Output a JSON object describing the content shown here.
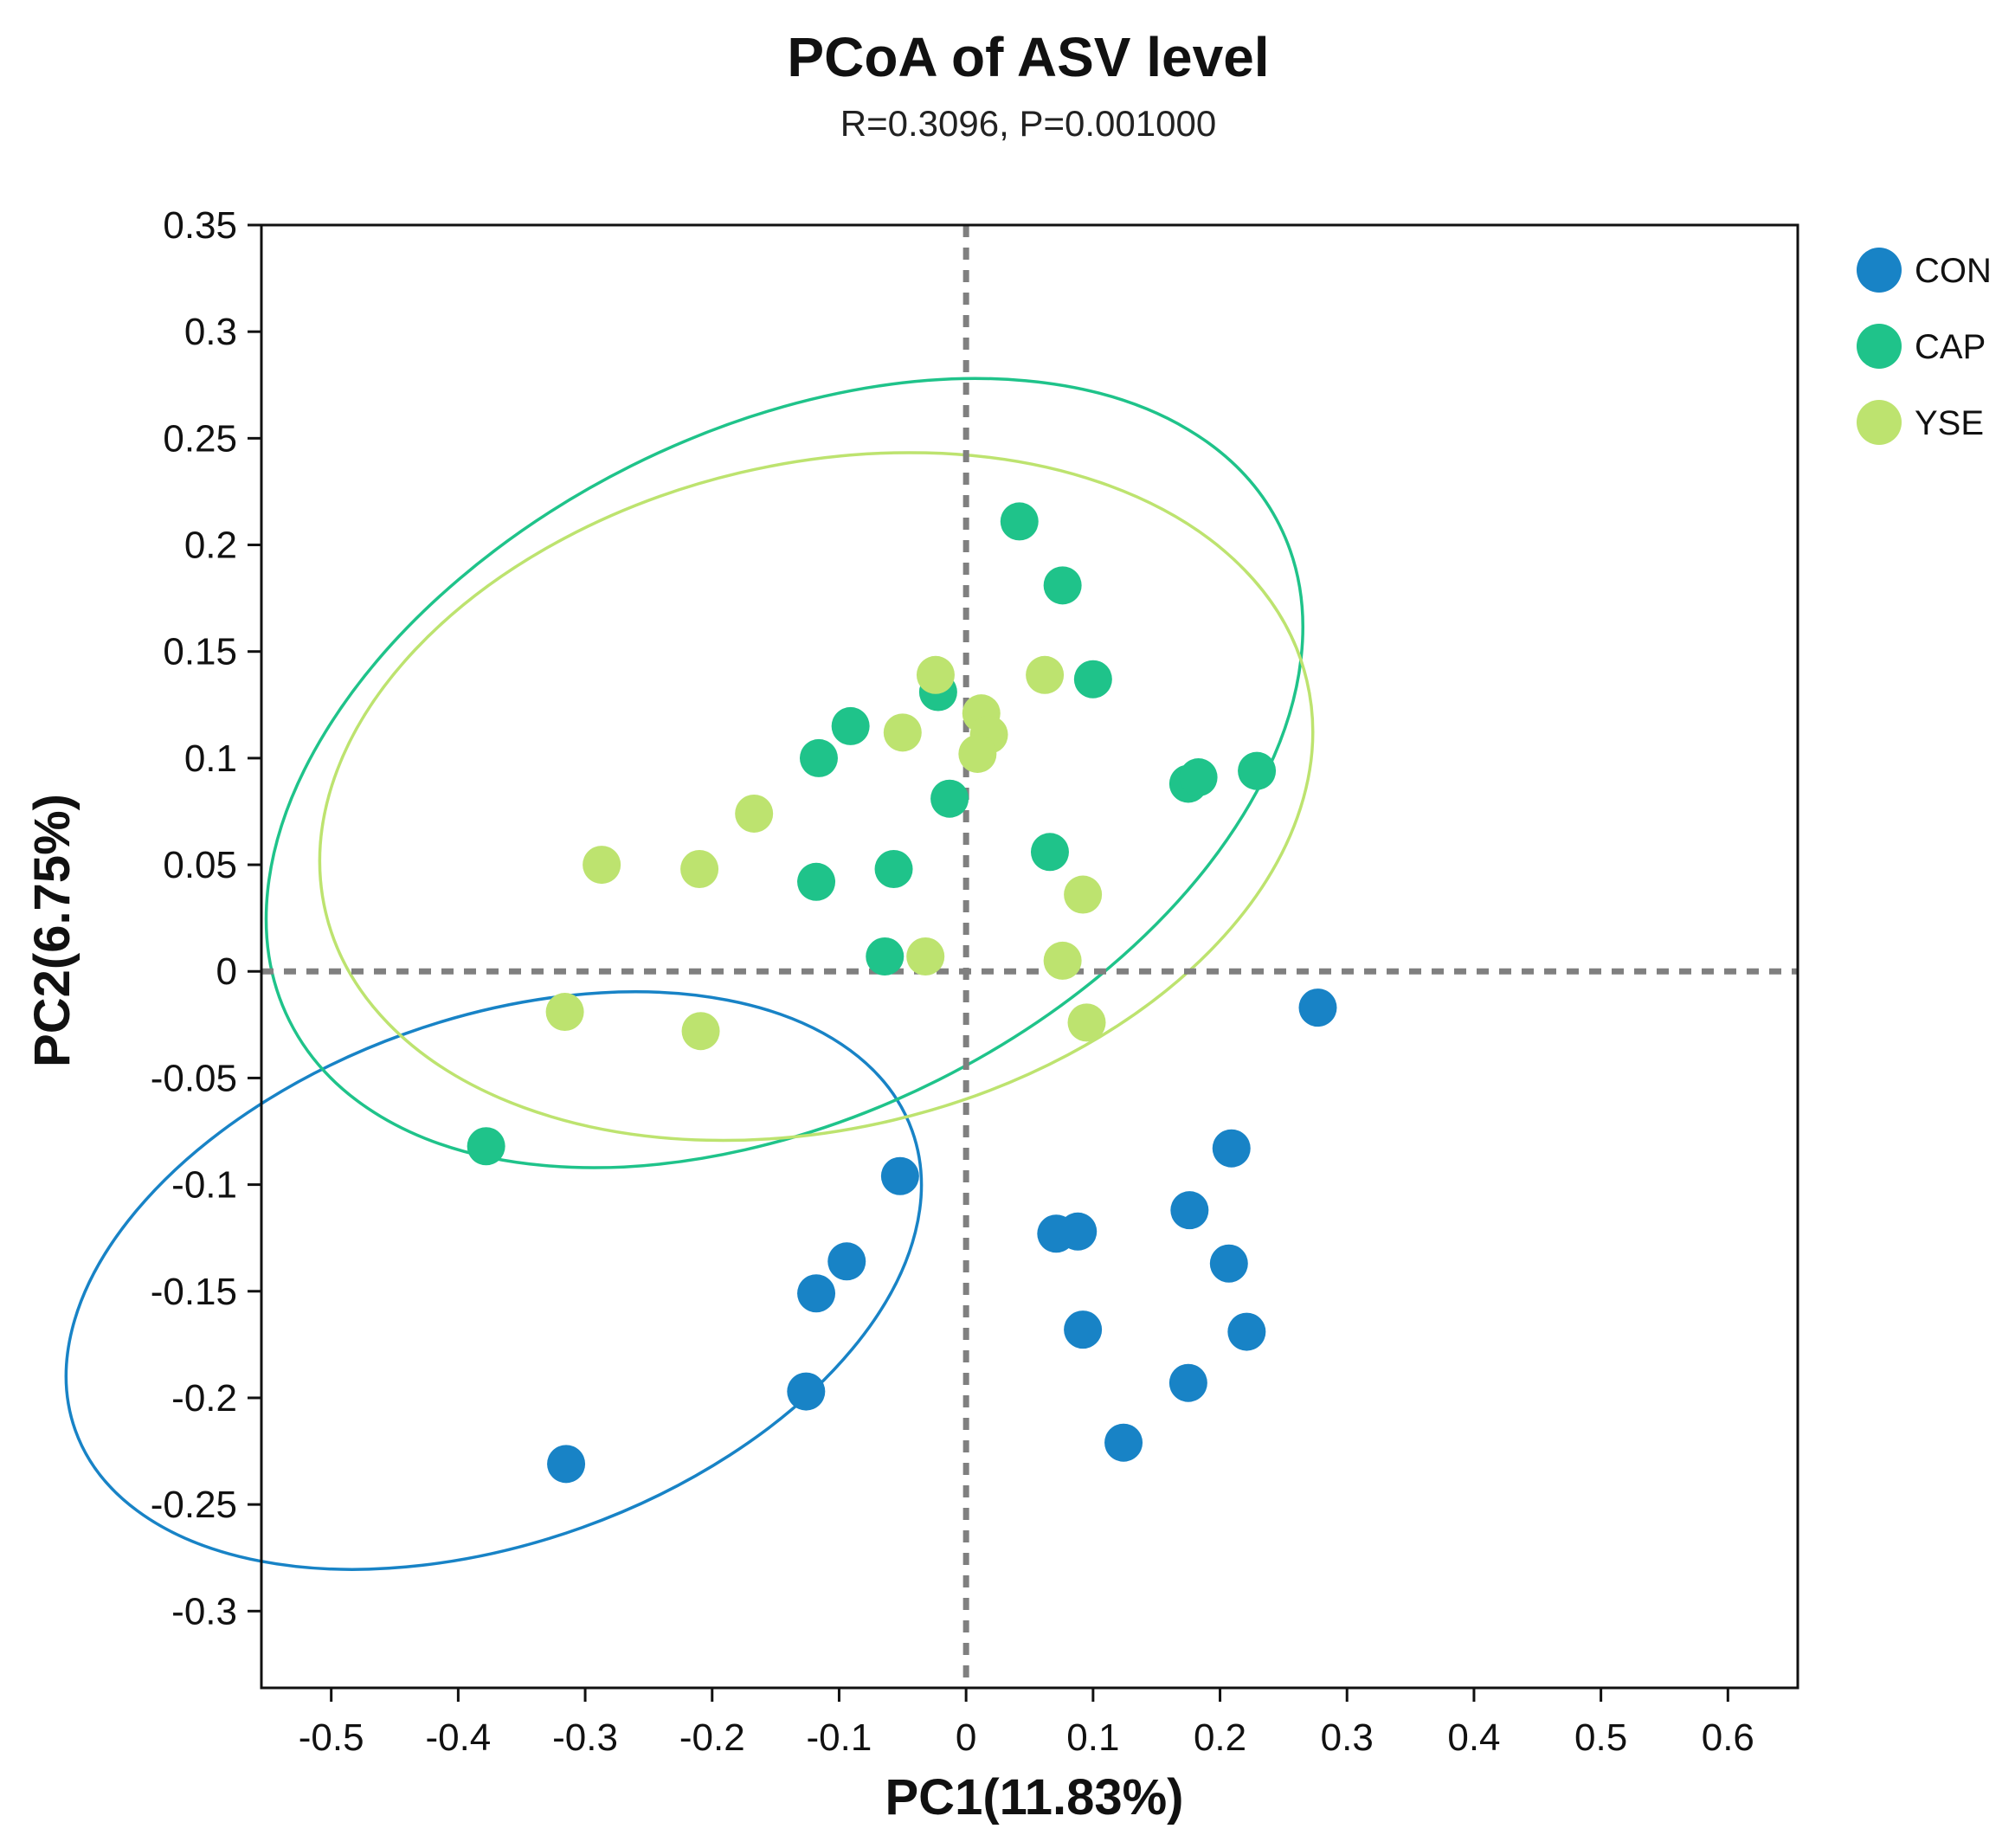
{
  "chart_data": {
    "type": "scatter",
    "title": "PCoA of ASV level",
    "subtitle": "R=0.3096, P=0.001000",
    "xlabel": "PC1(11.83%)",
    "ylabel": "PC2(6.75%)",
    "xlim": [
      -0.555,
      0.655
    ],
    "ylim": [
      -0.336,
      0.35
    ],
    "xticks": [
      -0.5,
      -0.4,
      -0.3,
      -0.2,
      -0.1,
      0,
      0.1,
      0.2,
      0.3,
      0.4,
      0.5,
      0.6
    ],
    "xtick_labels": [
      "-0.5",
      "-0.4",
      "-0.3",
      "-0.2",
      "-0.1",
      "0",
      "0.1",
      "0.2",
      "0.3",
      "0.4",
      "0.5",
      "0.6"
    ],
    "yticks": [
      0.35,
      0.3,
      0.25,
      0.2,
      0.15,
      0.1,
      0.05,
      0,
      -0.05,
      -0.1,
      -0.15,
      -0.2,
      -0.25,
      -0.3
    ],
    "ytick_labels": [
      "0.35",
      "0.3",
      "0.25",
      "0.2",
      "0.15",
      "0.1",
      "0.05",
      "0",
      "-0.05",
      "-0.1",
      "-0.15",
      "-0.2",
      "-0.25",
      "-0.3"
    ],
    "reference_lines": {
      "x": 0,
      "y": 0
    },
    "grid": false,
    "legend_position": "right-top",
    "series": [
      {
        "name": "CON",
        "color": "#1883C6",
        "points": [
          [
            0.277,
            -0.017
          ],
          [
            0.209,
            -0.083
          ],
          [
            -0.052,
            -0.096
          ],
          [
            0.176,
            -0.112
          ],
          [
            0.071,
            -0.123
          ],
          [
            0.088,
            -0.122
          ],
          [
            -0.094,
            -0.136
          ],
          [
            0.207,
            -0.137
          ],
          [
            -0.118,
            -0.151
          ],
          [
            0.092,
            -0.168
          ],
          [
            0.221,
            -0.169
          ],
          [
            -0.126,
            -0.197
          ],
          [
            0.175,
            -0.193
          ],
          [
            0.124,
            -0.221
          ],
          [
            -0.315,
            -0.231
          ]
        ],
        "ellipse": {
          "center": [
            0.183,
            -0.145
          ],
          "rx": 0.35,
          "ry": 0.123,
          "angle_deg": 19.7
        }
      },
      {
        "name": "CAP",
        "color": "#1FC38A",
        "points": [
          [
            0.042,
            0.211
          ],
          [
            0.076,
            0.181
          ],
          [
            0.1,
            0.137
          ],
          [
            -0.022,
            0.131
          ],
          [
            -0.091,
            0.115
          ],
          [
            -0.116,
            0.1
          ],
          [
            0.175,
            0.088
          ],
          [
            0.183,
            0.091
          ],
          [
            0.229,
            0.094
          ],
          [
            -0.013,
            0.081
          ],
          [
            0.066,
            0.056
          ],
          [
            -0.057,
            0.048
          ],
          [
            -0.118,
            0.042
          ],
          [
            -0.064,
            0.007
          ],
          [
            -0.378,
            -0.082
          ]
        ],
        "ellipse": {
          "center": [
            0.412,
            0.093
          ],
          "rx": 0.436,
          "ry": 0.161,
          "angle_deg": 26.6
        }
      },
      {
        "name": "YSE",
        "color": "#BDE36F",
        "points": [
          [
            -0.024,
            0.139
          ],
          [
            0.062,
            0.139
          ],
          [
            0.012,
            0.121
          ],
          [
            0.018,
            0.111
          ],
          [
            -0.05,
            0.112
          ],
          [
            0.009,
            0.102
          ],
          [
            -0.167,
            0.074
          ],
          [
            -0.287,
            0.05
          ],
          [
            -0.21,
            0.048
          ],
          [
            0.092,
            0.036
          ],
          [
            -0.032,
            0.007
          ],
          [
            0.076,
            0.005
          ],
          [
            -0.316,
            -0.019
          ],
          [
            -0.209,
            -0.028
          ],
          [
            0.095,
            -0.024
          ]
        ],
        "ellipse": {
          "center": [
            0.437,
            0.082
          ],
          "rx": 0.397,
          "ry": 0.156,
          "angle_deg": 13.3
        }
      }
    ]
  }
}
